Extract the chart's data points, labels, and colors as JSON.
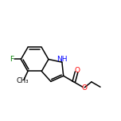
{
  "bg_color": "#ffffff",
  "bond_color": "#000000",
  "atom_colors": {
    "N": "#0000ff",
    "O": "#ff0000",
    "F": "#008000",
    "C": "#000000"
  },
  "figsize": [
    1.52,
    1.52
  ],
  "dpi": 100,
  "line_width": 1.1,
  "font_size": 6.5,
  "xlim": [
    0.0,
    1.0
  ],
  "ylim": [
    0.15,
    0.9
  ]
}
